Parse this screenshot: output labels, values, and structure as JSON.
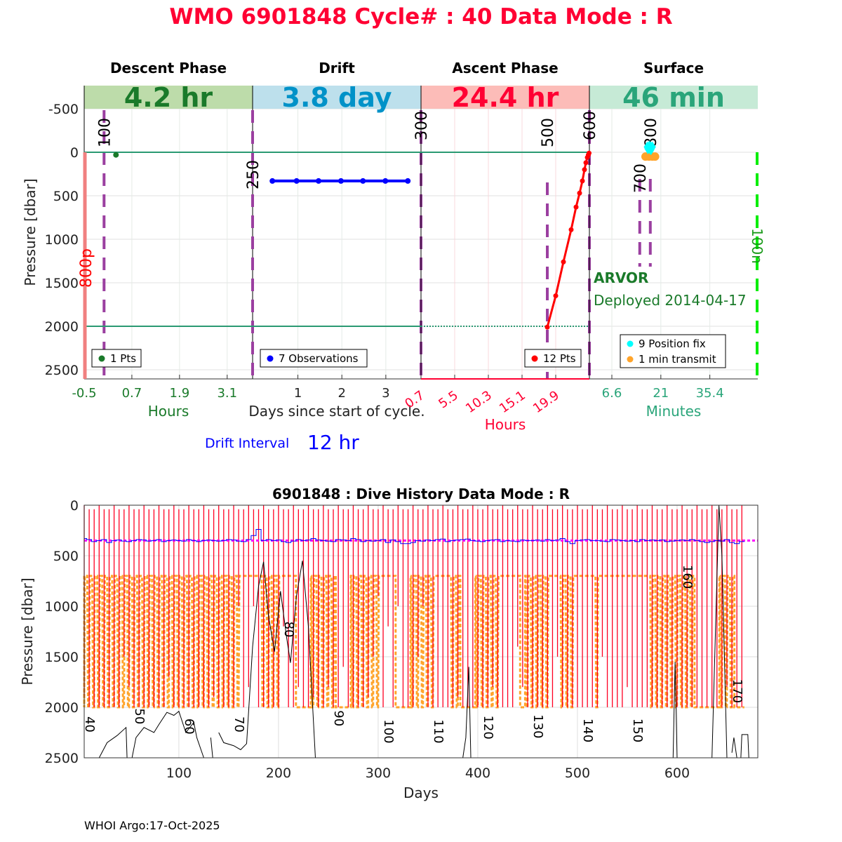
{
  "title": "WMO 6901848   Cycle# : 40   Data Mode : R",
  "footer": "WHOI Argo:17-Oct-2025",
  "colors": {
    "title": "#ff0033",
    "descent": "#1a7a2a",
    "drift": "#0092c8",
    "ascent": "#ff0033",
    "surface": "#2aa57a",
    "purple": "#9b3fa0",
    "orange": "#ffa42a",
    "magenta": "#ff00ff"
  },
  "chart_data": [
    {
      "type": "line",
      "name": "cycle-overview",
      "ylabel": "Pressure [dbar]",
      "ylim": [
        -766,
        2605
      ],
      "yticks": [
        "-500",
        "0",
        "500",
        "1000",
        "1500",
        "2000",
        "2500"
      ],
      "ytick_values": [
        -500,
        0,
        500,
        1000,
        1500,
        2000,
        2500
      ],
      "reference_lines": [
        0,
        2000
      ],
      "drift_interval_label": "Drift Interval",
      "drift_interval_value": "12 hr",
      "float_type": "ARVOR",
      "deployed": "Deployed 2014-04-17",
      "side_labels": {
        "left": "800p",
        "right": "100n"
      },
      "phases": [
        {
          "title": "Descent Phase",
          "duration": "4.2 hr",
          "xlim": [
            -0.5,
            3.74
          ],
          "xticks": [
            "-0.5",
            "0.7",
            "1.9",
            "3.1"
          ],
          "xtick_values": [
            -0.5,
            0.7,
            1.9,
            3.1
          ],
          "xlabel": "Hours",
          "markers": [
            {
              "label": "100",
              "x": 0.0
            }
          ],
          "points": [
            [
              0.3,
              30
            ]
          ],
          "legend": "1 Pts"
        },
        {
          "title": "Drift",
          "duration": "3.8 day",
          "xlim": [
            -0.03,
            3.8
          ],
          "xticks": [
            "1",
            "2",
            "3"
          ],
          "xtick_values": [
            1,
            2,
            3
          ],
          "xlabel": "Days since start of cycle.",
          "markers": [
            {
              "label": "250",
              "x": -0.03
            },
            {
              "label": "300",
              "x": 3.8
            }
          ],
          "points": [
            [
              0.42,
              330
            ],
            [
              0.97,
              330
            ],
            [
              1.47,
              330
            ],
            [
              1.98,
              330
            ],
            [
              2.48,
              330
            ],
            [
              2.99,
              330
            ],
            [
              3.5,
              330
            ]
          ],
          "legend": "7 Observations"
        },
        {
          "title": "Ascent Phase",
          "duration": "24.4 hr",
          "xlim": [
            0.7,
            24.7
          ],
          "xticks": [
            "0.7",
            "5.5",
            "10.3",
            "15.1",
            "19.9"
          ],
          "xtick_values": [
            0.7,
            5.5,
            10.3,
            15.1,
            19.9
          ],
          "xlabel": "Hours",
          "markers": [
            {
              "label": "500",
              "x": 18.7
            },
            {
              "label": "600",
              "x": 24.7
            }
          ],
          "points": [
            [
              18.7,
              2010
            ],
            [
              19.9,
              1650
            ],
            [
              21.0,
              1260
            ],
            [
              22.1,
              890
            ],
            [
              22.8,
              630
            ],
            [
              23.3,
              470
            ],
            [
              23.7,
              330
            ],
            [
              24.0,
              200
            ],
            [
              24.2,
              120
            ],
            [
              24.4,
              60
            ],
            [
              24.55,
              30
            ],
            [
              24.65,
              10
            ]
          ],
          "legend": "12 Pts"
        },
        {
          "title": "Surface",
          "duration": "46 min",
          "xlim": [
            0,
            49.5
          ],
          "xticks": [
            "6.6",
            "21",
            "35.4"
          ],
          "xtick_values": [
            6.6,
            21,
            35.4
          ],
          "xlabel": "Minutes",
          "markers": [
            {
              "label": "700",
              "x": 14.8
            },
            {
              "label": "800",
              "x": 17.9
            }
          ],
          "position_fixes": [
            [
              17.0,
              -60
            ],
            [
              17.5,
              -60
            ],
            [
              18.0,
              -60
            ],
            [
              18.5,
              -60
            ],
            [
              17.2,
              -40
            ],
            [
              17.8,
              -40
            ],
            [
              18.3,
              -50
            ],
            [
              17.6,
              -70
            ],
            [
              18.1,
              -30
            ]
          ],
          "transmit": [
            [
              16.5,
              50
            ],
            [
              17.5,
              50
            ],
            [
              18.5,
              50
            ],
            [
              19.3,
              50
            ]
          ],
          "legend": [
            "9 Position fix",
            "1 min transmit"
          ]
        }
      ]
    },
    {
      "type": "line",
      "name": "dive-history",
      "title": "6901848 : Dive History      Data Mode : R",
      "xlabel": "Days",
      "ylabel": "Pressure [dbar]",
      "xlim": [
        5,
        681
      ],
      "ylim": [
        0,
        2500
      ],
      "xticks": [
        "100",
        "200",
        "300",
        "400",
        "500",
        "600"
      ],
      "xtick_values": [
        100,
        200,
        300,
        400,
        500,
        600
      ],
      "yticks": [
        "0",
        "500",
        "1000",
        "1500",
        "2000",
        "2500"
      ],
      "ytick_values": [
        0,
        500,
        1000,
        1500,
        2000,
        2500
      ],
      "park_pressure": 350,
      "first_cycle": 40,
      "days_per_cycle": 5,
      "cycle_labels": [
        "40",
        "50",
        "60",
        "70",
        "80",
        "90",
        "100",
        "110",
        "120",
        "130",
        "140",
        "150",
        "160",
        "170"
      ],
      "cycle_label_values": [
        40,
        50,
        60,
        70,
        80,
        90,
        100,
        110,
        120,
        130,
        140,
        150,
        160,
        170
      ],
      "profile_max_pressure": [
        1900,
        2000,
        2000,
        2000,
        2000,
        2000,
        2000,
        2000,
        1500,
        1800,
        2000,
        2000,
        2000,
        2000,
        2000,
        2000,
        2000,
        1700,
        2000,
        2000,
        2000,
        2000,
        2000,
        2000,
        2000,
        2000,
        1900,
        2000,
        2000,
        2000,
        2000,
        1000,
        2000,
        1800,
        1000,
        2000,
        2000,
        2000,
        2000,
        2000,
        1200,
        2000,
        2000,
        1800,
        2000,
        2000,
        1900,
        2000,
        2000,
        1800,
        2000,
        2000,
        1600,
        2000,
        2000,
        2000,
        2000,
        1900,
        1500,
        900,
        2000,
        1200,
        2000,
        1000,
        2000,
        2000,
        2000,
        1500,
        1000,
        2000,
        2000,
        2000,
        2000,
        2000,
        2000,
        1900,
        2000,
        2000,
        2000,
        2000,
        2000,
        2000,
        1800,
        2000,
        2000,
        2000,
        2000,
        1400,
        1800,
        2000,
        2000,
        2000,
        2000,
        2000,
        2000,
        1500,
        2000,
        2000,
        2000,
        2000,
        2000,
        2000,
        2000,
        2000,
        1500,
        2000,
        2000,
        2000,
        2000,
        1800,
        2000,
        2000,
        2000,
        2000,
        2000,
        2000,
        2000,
        2000,
        2000,
        2000,
        2000,
        2000,
        2000,
        2000,
        2000,
        2000,
        2000,
        2000,
        2000,
        1800,
        2000,
        2000,
        2000
      ],
      "drift_pressure": [
        330,
        340,
        360,
        350,
        340,
        370,
        350,
        345,
        355,
        360,
        350,
        340,
        345,
        355,
        350,
        340,
        360,
        350,
        345,
        350,
        355,
        340,
        350,
        360,
        350,
        345,
        350,
        355,
        350,
        340,
        345,
        355,
        360,
        340,
        300,
        240,
        350,
        340,
        350,
        345,
        360,
        370,
        355,
        340,
        350,
        345,
        330,
        345,
        350,
        355,
        360,
        340,
        345,
        350,
        330,
        340,
        360,
        350,
        355,
        350,
        340,
        370,
        345,
        360,
        380,
        380,
        370,
        350,
        355,
        345,
        350,
        340,
        335,
        360,
        350,
        345,
        340,
        335,
        350,
        355,
        360,
        350,
        345,
        340,
        360,
        350,
        355,
        360,
        345,
        350,
        350,
        345,
        355,
        340,
        350,
        345,
        330,
        360,
        380,
        350,
        345,
        340,
        350,
        350,
        355,
        360,
        340,
        345,
        350,
        355,
        350,
        360,
        340,
        350,
        345,
        350,
        345,
        360,
        355,
        350,
        345,
        350,
        340,
        350,
        360,
        370,
        360,
        350,
        355,
        340,
        370,
        380,
        360
      ],
      "park_depth_trajectory": {
        "shallow": 700,
        "deep": 2000,
        "shallow_plateau_days": [
          [
            165,
            180
          ],
          [
            205,
            215
          ],
          [
            305,
            315
          ],
          [
            360,
            370
          ],
          [
            425,
            440
          ],
          [
            472,
            480
          ],
          [
            500,
            515
          ],
          [
            525,
            570
          ]
        ],
        "deep_plateau_days": [
          [
            218,
            230
          ],
          [
            256,
            272
          ],
          [
            312,
            330
          ],
          [
            360,
            365
          ],
          [
            381,
            395
          ],
          [
            435,
            445
          ],
          [
            620,
            640
          ],
          [
            660,
            680
          ]
        ]
      },
      "other_series": [
        [
          20,
          2500
        ],
        [
          28,
          2350
        ],
        [
          38,
          2280
        ],
        [
          47,
          2200
        ],
        [
          48,
          2500
        ],
        [
          53,
          2500
        ],
        [
          57,
          2300
        ],
        [
          65,
          2200
        ],
        [
          75,
          2250
        ],
        [
          80,
          2170
        ],
        [
          88,
          2050
        ],
        [
          95,
          2080
        ],
        [
          100,
          2040
        ],
        [
          107,
          2250
        ],
        [
          115,
          2150
        ],
        [
          118,
          2300
        ],
        [
          125,
          2500
        ],
        null,
        [
          132,
          2300
        ],
        [
          134,
          2500
        ],
        null,
        [
          140,
          2250
        ],
        [
          145,
          2350
        ],
        [
          155,
          2380
        ],
        [
          162,
          2420
        ],
        [
          168,
          2360
        ],
        [
          174,
          1400
        ],
        [
          180,
          800
        ],
        [
          185,
          560
        ],
        [
          190,
          1100
        ],
        [
          196,
          1450
        ],
        [
          202,
          850
        ],
        [
          208,
          1300
        ],
        [
          212,
          1560
        ],
        [
          218,
          900
        ],
        [
          224,
          550
        ],
        [
          230,
          1200
        ],
        [
          237,
          2500
        ],
        null,
        [
          385,
          2500
        ],
        [
          388,
          2300
        ],
        [
          391,
          1600
        ],
        [
          393,
          2500
        ],
        null,
        [
          596,
          2500
        ],
        [
          598,
          1550
        ],
        [
          600,
          2500
        ],
        null,
        [
          635,
          2500
        ],
        [
          642,
          0
        ],
        [
          645,
          500
        ],
        [
          650,
          2500
        ],
        null,
        [
          655,
          2450
        ],
        [
          657,
          2300
        ],
        [
          660,
          2500
        ],
        null,
        [
          664,
          2500
        ],
        [
          665,
          2270
        ],
        [
          671,
          2270
        ],
        [
          672,
          2500
        ]
      ]
    }
  ]
}
